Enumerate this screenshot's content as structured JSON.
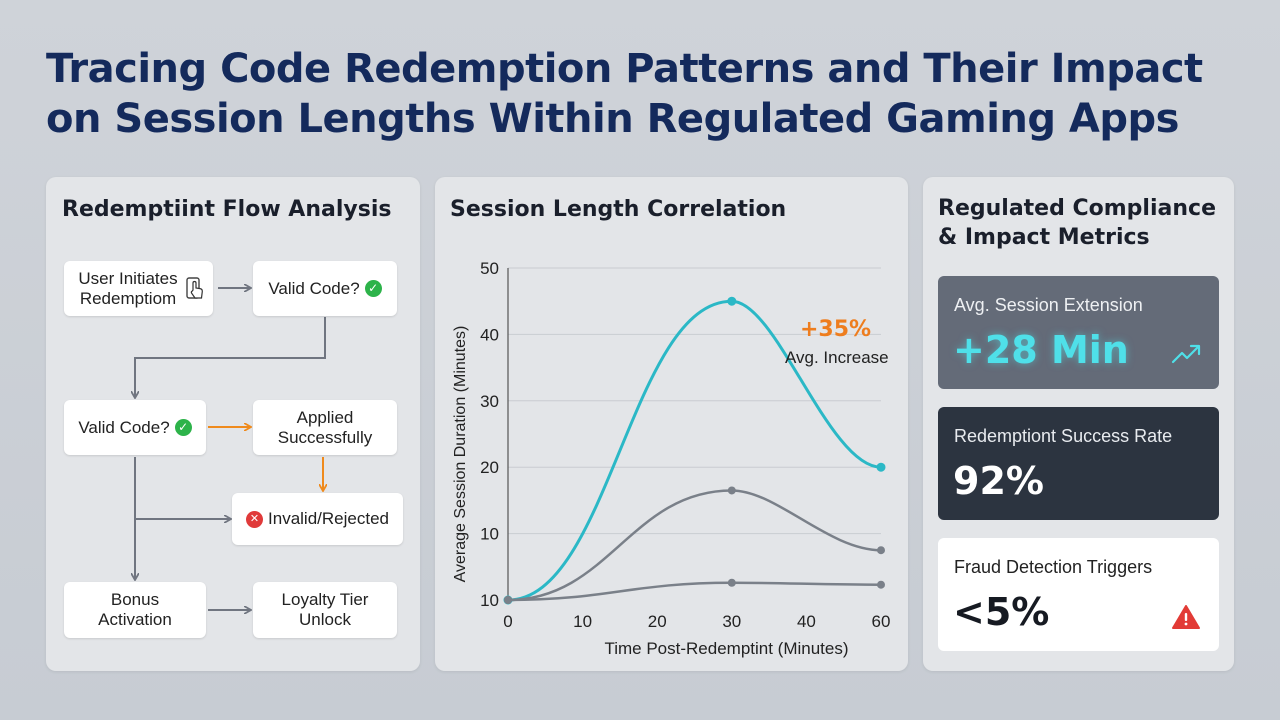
{
  "page": {
    "title_line1": "Tracing Code Redemption Patterns and Their Impact",
    "title_line2": "on Session Lengths Within Regulated Gaming Apps"
  },
  "flow": {
    "title": "Redemptiint Flow Analysis",
    "nodes": {
      "initiate": "User Initiates Redemptiom",
      "valid1": "Valid Code?",
      "valid2": "Valid Code?",
      "applied": "Applied Successfully",
      "invalid": "Invalid/Rejected",
      "bonus": "Bonus Activation",
      "loyalty": "Loyalty Tier Unlock"
    },
    "icons": {
      "initiate": "hand-pointer-icon",
      "valid": "check-circle-icon",
      "invalid": "x-circle-icon"
    },
    "colors": {
      "arrow_gray": "#707580",
      "arrow_orange": "#ef8a1c",
      "check": "#2db34a",
      "reject": "#e03a3a"
    }
  },
  "chart": {
    "title": "Session Length Correlation",
    "annotation_value": "+35%",
    "annotation_label": "Avg. Increase",
    "annotation_color": "#ee7d1e"
  },
  "chart_data": {
    "type": "line",
    "xlabel": "Time Post-Redemptint (Minutes)",
    "ylabel": "Average Session Duration (Minutes)",
    "x_ticks": [
      "0",
      "10",
      "20",
      "30",
      "40",
      "60"
    ],
    "y_ticks": [
      "10",
      "10",
      "20",
      "30",
      "40",
      "50"
    ],
    "x_categories": [
      0,
      10,
      20,
      30,
      40,
      60
    ],
    "ylim": [
      0,
      50
    ],
    "grid": true,
    "series": [
      {
        "color": "#2bb8c6",
        "width": 3,
        "points": [
          [
            0,
            0
          ],
          [
            30,
            45
          ],
          [
            60,
            20
          ]
        ]
      },
      {
        "color": "#7a8089",
        "width": 2.5,
        "points": [
          [
            0,
            0
          ],
          [
            30,
            16.5
          ],
          [
            60,
            7.5
          ]
        ]
      },
      {
        "color": "#7a8089",
        "width": 2.5,
        "points": [
          [
            0,
            0
          ],
          [
            30,
            2.6
          ],
          [
            60,
            2.3
          ]
        ]
      }
    ]
  },
  "metrics": {
    "title_line1": "Regulated Compliance",
    "title_line2": "& Impact Metrics",
    "extension": {
      "label": "Avg. Session Extension",
      "value": "+28 Min",
      "icon": "trend-up-icon",
      "color": "#4fe0e9"
    },
    "success": {
      "label": "Redemptiont Success Rate",
      "value": "92%"
    },
    "fraud": {
      "label": "Fraud Detection Triggers",
      "value": "<5%",
      "icon": "warning-icon",
      "icon_color": "#e23b36"
    }
  }
}
